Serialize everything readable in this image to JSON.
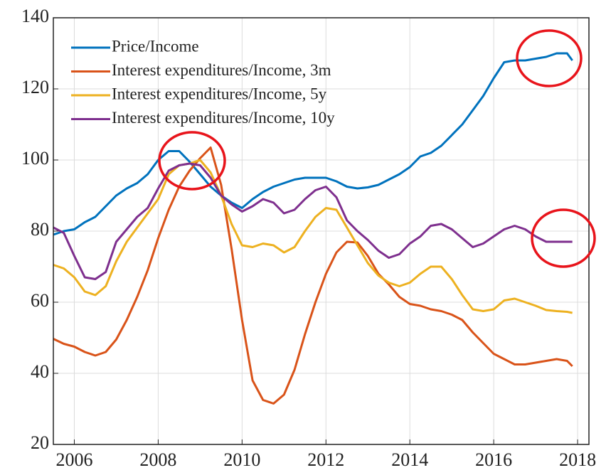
{
  "chart_data": {
    "type": "line",
    "x": [
      2005.5,
      2005.75,
      2006,
      2006.25,
      2006.5,
      2006.75,
      2007,
      2007.25,
      2007.5,
      2007.75,
      2008,
      2008.25,
      2008.5,
      2008.75,
      2009,
      2009.25,
      2009.5,
      2009.75,
      2010,
      2010.25,
      2010.5,
      2010.75,
      2011,
      2011.25,
      2011.5,
      2011.75,
      2012,
      2012.25,
      2012.5,
      2012.75,
      2013,
      2013.25,
      2013.5,
      2013.75,
      2014,
      2014.25,
      2014.5,
      2014.75,
      2015,
      2015.25,
      2015.5,
      2015.75,
      2016,
      2016.25,
      2016.5,
      2016.75,
      2017,
      2017.25,
      2017.5,
      2017.75,
      2017.875
    ],
    "series": [
      {
        "name": "Price/Income",
        "color": "#0072bd",
        "values": [
          79,
          80,
          80.5,
          82.5,
          84,
          87,
          90,
          92,
          93.5,
          96,
          100,
          102.5,
          102.5,
          99.5,
          96,
          92.5,
          90,
          88,
          86.5,
          89,
          91,
          92.5,
          93.5,
          94.5,
          95,
          95,
          95,
          94,
          92.5,
          92,
          92.3,
          93,
          94.5,
          96,
          98,
          101,
          102,
          104,
          107,
          110,
          114,
          118,
          123,
          127.5,
          128,
          128,
          128.5,
          129,
          130,
          130,
          128
        ]
      },
      {
        "name": "Interest expenditures/Income, 3m",
        "color": "#d95319",
        "values": [
          49.7,
          48.3,
          47.5,
          46,
          45,
          46,
          49.5,
          55,
          61.5,
          69,
          78,
          86,
          92.5,
          97,
          100.5,
          103.5,
          93,
          75,
          55,
          38,
          32.5,
          31.5,
          34,
          41,
          51,
          60,
          68,
          74,
          77,
          76.8,
          73,
          68,
          65,
          61.5,
          59.5,
          59,
          58,
          57.5,
          56.5,
          55,
          51.5,
          48.5,
          45.5,
          44,
          42.5,
          42.5,
          43,
          43.5,
          44,
          43.5,
          42
        ]
      },
      {
        "name": "Interest expenditures/Income, 5y",
        "color": "#edb120",
        "values": [
          70.5,
          69.5,
          67,
          63,
          62,
          64.5,
          71.5,
          77,
          81,
          85,
          89,
          96,
          98.5,
          99,
          100,
          96.5,
          90,
          82,
          76,
          75.5,
          76.5,
          76,
          74,
          75.5,
          80,
          84,
          86.5,
          86,
          81,
          76,
          71,
          67.5,
          65.5,
          64.5,
          65.5,
          68,
          70,
          70,
          66.5,
          62,
          58,
          57.5,
          58,
          60.5,
          61,
          60,
          59,
          57.8,
          57.5,
          57.3,
          57
        ]
      },
      {
        "name": "Interest expenditures/Income, 10y",
        "color": "#7e2f8e",
        "values": [
          81,
          79.5,
          73,
          67,
          66.5,
          68.5,
          77,
          80.5,
          84,
          86.5,
          92,
          97,
          98.5,
          99,
          98.5,
          95,
          90,
          87.5,
          85.5,
          87,
          89,
          88,
          85,
          86,
          89,
          91.5,
          92.5,
          89.5,
          83,
          80,
          77.5,
          74.5,
          72.5,
          73.5,
          76.5,
          78.5,
          81.5,
          82,
          80.5,
          78,
          75.5,
          76.5,
          78.5,
          80.5,
          81.5,
          80.5,
          78.5,
          77,
          77,
          77,
          77
        ]
      }
    ],
    "xlim": [
      2005.5,
      2018.27
    ],
    "ylim": [
      20,
      140
    ],
    "xticks": [
      2006,
      2008,
      2010,
      2012,
      2014,
      2016,
      2018
    ],
    "yticks": [
      20,
      40,
      60,
      80,
      100,
      120,
      140
    ],
    "grid": true,
    "legend": "upper left"
  }
}
